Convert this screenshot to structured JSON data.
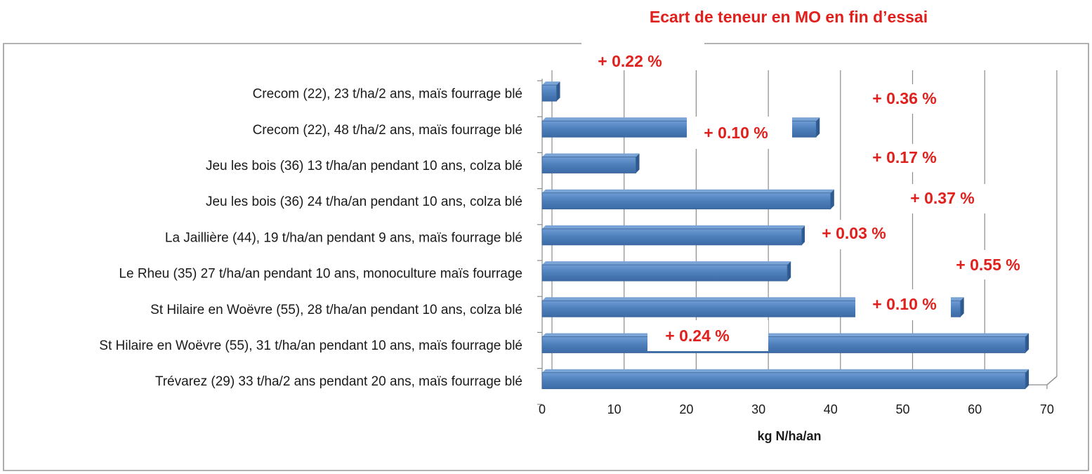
{
  "chart_data": {
    "type": "bar",
    "orientation": "horizontal",
    "title": "Ecart de teneur en MO en fin d’essai",
    "xlabel": "kg N/ha/an",
    "ylabel": "",
    "xlim": [
      0,
      70
    ],
    "xticks": [
      "0",
      "10",
      "20",
      "30",
      "40",
      "50",
      "60",
      "70"
    ],
    "grid": true,
    "categories": [
      "Crecom (22), 23 t/ha/2 ans, maïs fourrage blé",
      "Crecom (22), 48 t/ha/2 ans, maïs fourrage blé",
      "Jeu les bois (36) 13 t/ha/an pendant 10 ans, colza blé",
      "Jeu les bois (36) 24 t/ha/an pendant 10 ans, colza blé",
      "La Jaillière (44), 19 t/ha/an pendant 9 ans, maïs fourrage blé",
      "Le Rheu (35) 27 t/ha/an pendant 10 ans, monoculture maïs fourrage",
      "St Hilaire en Woëvre (55), 28 t/ha/an pendant 10 ans, colza blé",
      "St Hilaire en Woëvre (55), 31 t/ha/an pendant 10 ans, maïs fourrage blé",
      "Trévarez (29) 33 t/ha/2 ans pendant 20 ans, maïs fourrage blé"
    ],
    "values": [
      2,
      38,
      13,
      40,
      36,
      34,
      58,
      67,
      67
    ],
    "bar_color": "#4f81bd",
    "annotations": [
      "+ 0.22 %",
      "+ 0.36 %",
      "+ 0.10 %",
      "+ 0.17 %",
      "+ 0.37 %",
      "+ 0.03 %",
      "+ 0.55 %",
      "+ 0.10 %",
      "+ 0.24 %"
    ],
    "annotation_color": "#e0201c"
  }
}
